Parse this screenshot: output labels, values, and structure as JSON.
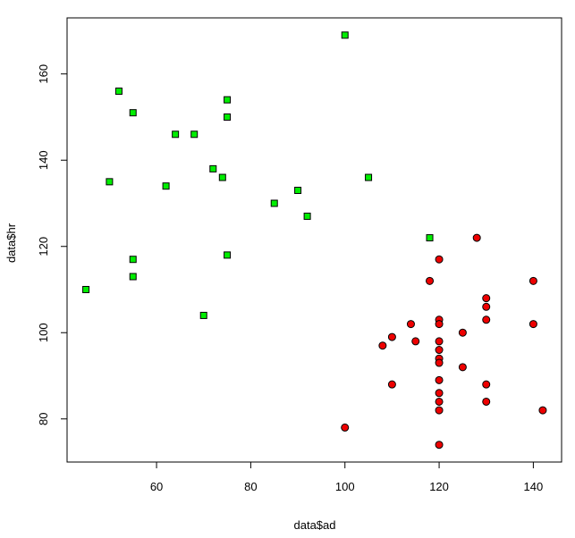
{
  "chart_data": {
    "type": "scatter",
    "xlabel": "data$ad",
    "ylabel": "data$hr",
    "xlim": [
      41,
      146
    ],
    "ylim": [
      70,
      173
    ],
    "xticks": [
      60,
      80,
      100,
      120,
      140
    ],
    "yticks": [
      80,
      100,
      120,
      140,
      160
    ],
    "grid": false,
    "series": [
      {
        "marker": "square",
        "color": "#00ee00",
        "points": [
          [
            45,
            110
          ],
          [
            50,
            135
          ],
          [
            52,
            156
          ],
          [
            55,
            151
          ],
          [
            55,
            117
          ],
          [
            55,
            113
          ],
          [
            62,
            134
          ],
          [
            64,
            146
          ],
          [
            68,
            146
          ],
          [
            70,
            104
          ],
          [
            72,
            138
          ],
          [
            74,
            136
          ],
          [
            75,
            154
          ],
          [
            75,
            150
          ],
          [
            75,
            118
          ],
          [
            85,
            130
          ],
          [
            90,
            133
          ],
          [
            92,
            127
          ],
          [
            100,
            169
          ],
          [
            105,
            136
          ],
          [
            118,
            122
          ]
        ]
      },
      {
        "marker": "circle",
        "color": "#ee0000",
        "points": [
          [
            100,
            78
          ],
          [
            108,
            97
          ],
          [
            110,
            99
          ],
          [
            110,
            88
          ],
          [
            114,
            102
          ],
          [
            115,
            98
          ],
          [
            118,
            112
          ],
          [
            120,
            117
          ],
          [
            120,
            103
          ],
          [
            120,
            102
          ],
          [
            120,
            98
          ],
          [
            120,
            96
          ],
          [
            120,
            94
          ],
          [
            120,
            93
          ],
          [
            120,
            89
          ],
          [
            120,
            86
          ],
          [
            120,
            84
          ],
          [
            120,
            82
          ],
          [
            120,
            74
          ],
          [
            125,
            100
          ],
          [
            125,
            92
          ],
          [
            128,
            122
          ],
          [
            130,
            108
          ],
          [
            130,
            106
          ],
          [
            130,
            103
          ],
          [
            130,
            88
          ],
          [
            130,
            84
          ],
          [
            140,
            112
          ],
          [
            140,
            102
          ],
          [
            142,
            82
          ]
        ]
      }
    ]
  }
}
